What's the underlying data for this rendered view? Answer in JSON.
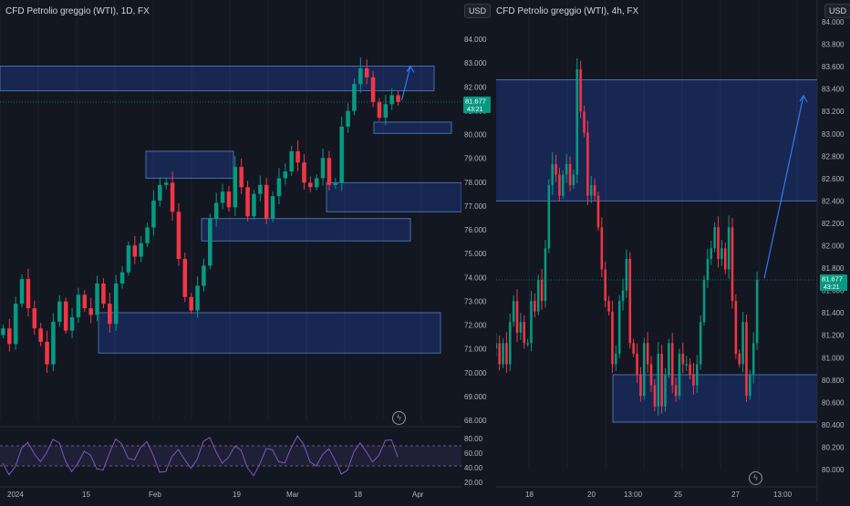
{
  "left": {
    "title": "CFD Petrolio greggio (WTI), 1D, FX",
    "currency": "USD",
    "last_price": "81.677",
    "countdown": "43:21",
    "price_ticks": [
      "84.000",
      "83.000",
      "82.000",
      "81.000",
      "80.000",
      "79.000",
      "78.000",
      "77.000",
      "76.000",
      "75.000",
      "74.000",
      "73.000",
      "72.000",
      "71.000",
      "70.000",
      "69.000",
      "68.000"
    ],
    "osc_ticks": [
      "80.00",
      "60.00",
      "40.00",
      "20.00"
    ],
    "time_labels": [
      "2024",
      "15",
      "Feb",
      "19",
      "Mar",
      "18",
      "Apr"
    ]
  },
  "right": {
    "title": "CFD Petrolio greggio (WTI), 4h, FX",
    "currency": "USD",
    "last_price": "81.677",
    "countdown": "43:21",
    "price_ticks": [
      "84.000",
      "83.800",
      "83.600",
      "83.400",
      "83.200",
      "83.000",
      "82.800",
      "82.600",
      "82.400",
      "82.200",
      "82.000",
      "81.800",
      "81.600",
      "81.400",
      "81.200",
      "81.000",
      "80.800",
      "80.600",
      "80.400",
      "80.200",
      "80.000"
    ],
    "time_labels": [
      "18",
      "20",
      "13:00",
      "25",
      "27",
      "13:00"
    ]
  },
  "chart_data": [
    {
      "type": "candlestick",
      "title": "CFD Petrolio greggio (WTI), 1D, FX",
      "ylim": [
        67.5,
        84.5
      ],
      "zones": [
        [
          82.2,
          83.3
        ],
        [
          78.3,
          79.5
        ],
        [
          76.8,
          78.1
        ],
        [
          75.5,
          76.5
        ],
        [
          70.5,
          72.3
        ],
        [
          80.3,
          80.8
        ]
      ],
      "closes": [
        71.6,
        70.9,
        72.7,
        73.8,
        72.5,
        71.6,
        71.0,
        70.0,
        71.9,
        72.8,
        71.5,
        72.1,
        73.1,
        72.5,
        72.2,
        73.6,
        72.7,
        71.8,
        73.6,
        74.1,
        75.3,
        74.8,
        75.4,
        76.1,
        77.3,
        78.0,
        78.1,
        76.8,
        74.7,
        73.0,
        72.4,
        73.5,
        74.4,
        76.5,
        77.2,
        77.7,
        77.0,
        78.8,
        77.9,
        76.6,
        77.6,
        78.0,
        76.5,
        77.5,
        78.3,
        78.6,
        79.5,
        79.0,
        78.1,
        77.9,
        78.3,
        79.2,
        78.0,
        78.1,
        80.6,
        81.3,
        82.5,
        83.2,
        82.8,
        81.7,
        81.0,
        81.6,
        82.0,
        81.7
      ],
      "arrow_target": 83.3
    },
    {
      "type": "candlestick",
      "title": "CFD Petrolio greggio (WTI), 4h, FX",
      "ylim": [
        79.9,
        84.15
      ],
      "zones": [
        [
          82.45,
          83.6
        ],
        [
          80.35,
          80.8
        ]
      ],
      "closes": [
        81.05,
        81.1,
        80.9,
        81.1,
        80.9,
        81.3,
        81.5,
        81.2,
        81.3,
        81.1,
        81.1,
        81.5,
        81.4,
        81.7,
        81.5,
        82.0,
        82.6,
        82.8,
        82.7,
        82.5,
        82.7,
        82.8,
        82.6,
        82.7,
        83.7,
        83.3,
        83.1,
        82.5,
        82.6,
        82.5,
        82.2,
        81.8,
        81.5,
        81.4,
        80.9,
        81.0,
        81.5,
        81.6,
        81.9,
        81.1,
        81.0,
        80.8,
        80.6,
        81.1,
        80.9,
        80.7,
        80.5,
        81.0,
        80.5,
        80.8,
        81.1,
        80.7,
        80.6,
        81.0,
        80.9,
        80.9,
        80.8,
        80.7,
        80.9,
        81.3,
        81.7,
        81.9,
        82.0,
        82.2,
        81.9,
        82.0,
        81.8,
        82.2,
        81.5,
        81.0,
        80.9,
        81.3,
        80.6,
        80.8,
        81.1,
        81.7
      ],
      "arrow_target": 83.45
    }
  ]
}
